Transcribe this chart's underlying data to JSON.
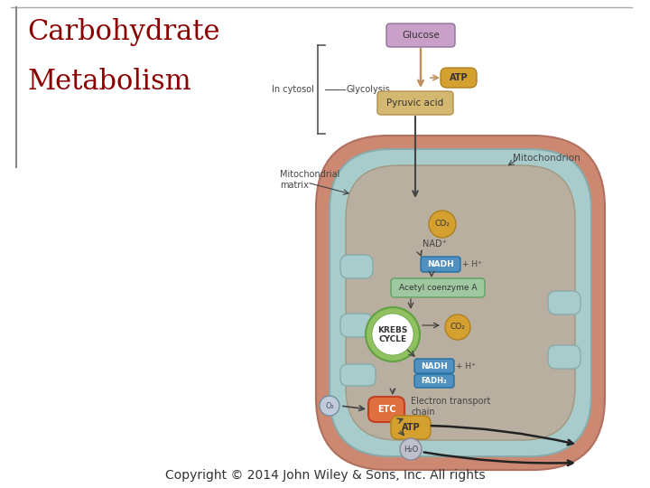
{
  "title_line1": "Carbohydrate",
  "title_line2": "Metabolism",
  "title_color": "#8B0000",
  "title_fontsize": 22,
  "copyright_text": "Copyright © 2014 John Wiley & Sons, Inc. All rights",
  "copyright_fontsize": 10,
  "bg_color": "#FFFFFF",
  "mito_outer_color": "#CC8870",
  "mito_inner_color": "#A8CCCC",
  "matrix_color": "#B8AFA0",
  "glucose_box_color": "#C8A0C8",
  "pyruvic_box_color": "#D4B870",
  "atp_color": "#D4A030",
  "nadh_box_color": "#5090C0",
  "acetyl_box_color": "#A0C8A0",
  "krebs_circle_outer": "#90C060",
  "krebs_circle_inner": "#FFFFFF",
  "co2_circle_color": "#D4A030",
  "etc_circle_color": "#E07040",
  "h2o_circle_color": "#C0C0CC",
  "o2_circle_color": "#C0CCDD",
  "fadh_box_color": "#5090C0",
  "arrow_color": "#444444",
  "label_color": "#444444"
}
